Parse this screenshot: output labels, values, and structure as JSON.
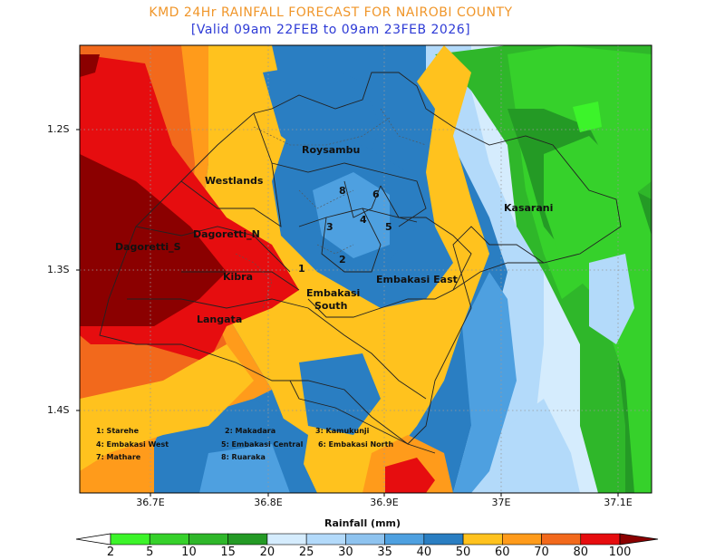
{
  "header": {
    "title": "KMD 24Hr RAINFALL FORECAST FOR NAIROBI COUNTY",
    "subtitle": "[Valid 09am 22FEB to 09am 23FEB 2026]"
  },
  "axes": {
    "y_ticks": [
      "1.2S",
      "1.3S",
      "1.4S"
    ],
    "x_ticks": [
      "36.7E",
      "36.8E",
      "36.9E",
      "37E",
      "37.1E"
    ]
  },
  "regions": {
    "names": [
      "Roysambu",
      "Westlands",
      "Kasarani",
      "Dagoretti_N",
      "Dagoretti_S",
      "Kibra",
      "Embakasi",
      "South",
      "Embakasi East",
      "Langata"
    ],
    "numbers": [
      "1",
      "2",
      "3",
      "4",
      "5",
      "6",
      "8"
    ]
  },
  "key": {
    "items": [
      "1: Starehe",
      "2: Makadara",
      "3: Kamukunji",
      "4: Embakasi West",
      "5: Embakasi Central",
      "6: Embakasi North",
      "7: Mathare",
      "8: Ruaraka"
    ]
  },
  "colorbar": {
    "title": "Rainfall (mm)",
    "labels": [
      "2",
      "5",
      "10",
      "15",
      "20",
      "25",
      "30",
      "35",
      "40",
      "50",
      "60",
      "70",
      "80",
      "100"
    ],
    "colors": [
      "#ffffff",
      "#3cf42a",
      "#36d12b",
      "#2fb72a",
      "#249a25",
      "#d5ecfd",
      "#b3dafa",
      "#8ec3ef",
      "#4ea0e0",
      "#2a7ec2",
      "#ffc21e",
      "#ff9b1b",
      "#f2691c",
      "#e60d0f",
      "#8b0000"
    ]
  },
  "chart_data": {
    "type": "heatmap",
    "title": "KMD 24Hr RAINFALL FORECAST FOR NAIROBI COUNTY",
    "subtitle": "[Valid 09am 22FEB to 09am 23FEB 2026]",
    "xlabel": "",
    "ylabel": "",
    "xlim": [
      36.645,
      37.15
    ],
    "ylim": [
      -1.46,
      -1.16
    ],
    "x_ticks": [
      36.7,
      36.8,
      36.9,
      37.0,
      37.1
    ],
    "y_ticks": [
      -1.2,
      -1.3,
      -1.4
    ],
    "colorbar_label": "Rainfall (mm)",
    "levels": [
      2,
      5,
      10,
      15,
      20,
      25,
      30,
      35,
      40,
      50,
      60,
      70,
      80,
      100
    ],
    "grid": true
  }
}
